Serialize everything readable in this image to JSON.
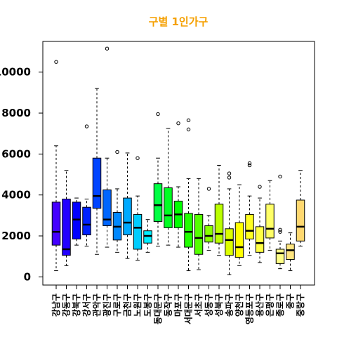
{
  "chart_data": {
    "type": "box",
    "title": "구별 1인가구",
    "xlabel": "",
    "ylabel": "",
    "ylim": [
      -400,
      11500
    ],
    "yticks": [
      0,
      2000,
      4000,
      6000,
      8000,
      10000
    ],
    "ytick_labels": [
      "0",
      "2000",
      "4000",
      "6000",
      "8000",
      "10000"
    ],
    "grid": false,
    "legend": "none",
    "categories": [
      "강남구",
      "강동구",
      "강북구",
      "강서구",
      "관악구",
      "광진구",
      "구로구",
      "금천구",
      "노원구",
      "도봉구",
      "동대문구",
      "동작구",
      "마포구",
      "서대문구",
      "서초구",
      "성동구",
      "성북구",
      "송파구",
      "양천구",
      "영등포구",
      "용산구",
      "은평구",
      "종로구",
      "중구",
      "중랑구"
    ],
    "colors": [
      "#4400ff",
      "#2200ff",
      "#0000ff",
      "#0022ff",
      "#0044ff",
      "#0066ff",
      "#0088ff",
      "#00aaff",
      "#00ccff",
      "#00eeff",
      "#00ff44",
      "#00ff22",
      "#00ff00",
      "#22ff00",
      "#55ff00",
      "#88ff00",
      "#bbff00",
      "#ddff00",
      "#ffff00",
      "#ffff22",
      "#ffff44",
      "#ffff66",
      "#ffff88",
      "#ffe680",
      "#ffd870"
    ],
    "boxes": [
      {
        "min": 300,
        "q1": 1550,
        "median": 2200,
        "q3": 3650,
        "max": 6400,
        "outliers": [
          10500
        ]
      },
      {
        "min": 550,
        "q1": 1050,
        "median": 1350,
        "q3": 3800,
        "max": 5200,
        "outliers": []
      },
      {
        "min": 1550,
        "q1": 1850,
        "median": 2800,
        "q3": 3650,
        "max": 3850,
        "outliers": []
      },
      {
        "min": 1500,
        "q1": 2050,
        "median": 2550,
        "q3": 3400,
        "max": 3800,
        "outliers": [
          7350
        ]
      },
      {
        "min": 1100,
        "q1": 3350,
        "median": 3950,
        "q3": 5800,
        "max": 9200,
        "outliers": []
      },
      {
        "min": 1450,
        "q1": 2500,
        "median": 2800,
        "q3": 4250,
        "max": 5800,
        "outliers": [
          11150
        ]
      },
      {
        "min": 1200,
        "q1": 1800,
        "median": 2450,
        "q3": 3150,
        "max": 4300,
        "outliers": [
          6100
        ]
      },
      {
        "min": 900,
        "q1": 2050,
        "median": 2650,
        "q3": 3850,
        "max": 6050,
        "outliers": []
      },
      {
        "min": 800,
        "q1": 1350,
        "median": 2400,
        "q3": 3050,
        "max": 3950,
        "outliers": [
          5800
        ]
      },
      {
        "min": 1200,
        "q1": 1650,
        "median": 2000,
        "q3": 2250,
        "max": 2800,
        "outliers": []
      },
      {
        "min": 1500,
        "q1": 2700,
        "median": 3500,
        "q3": 4550,
        "max": 5800,
        "outliers": [
          7950
        ]
      },
      {
        "min": 1550,
        "q1": 2400,
        "median": 3000,
        "q3": 4350,
        "max": 7250,
        "outliers": []
      },
      {
        "min": 1450,
        "q1": 2400,
        "median": 3050,
        "q3": 3700,
        "max": 4400,
        "outliers": [
          7500
        ]
      },
      {
        "min": 300,
        "q1": 1450,
        "median": 2200,
        "q3": 3100,
        "max": 4800,
        "outliers": [
          7650,
          7200
        ]
      },
      {
        "min": 350,
        "q1": 1100,
        "median": 1900,
        "q3": 3050,
        "max": 4800,
        "outliers": []
      },
      {
        "min": 1300,
        "q1": 1700,
        "median": 2000,
        "q3": 2500,
        "max": 3000,
        "outliers": [
          4300
        ]
      },
      {
        "min": 1050,
        "q1": 1650,
        "median": 2100,
        "q3": 3550,
        "max": 5450,
        "outliers": []
      },
      {
        "min": 100,
        "q1": 1050,
        "median": 1800,
        "q3": 2350,
        "max": 4300,
        "outliers": [
          5050,
          4850
        ]
      },
      {
        "min": 550,
        "q1": 950,
        "median": 1450,
        "q3": 2650,
        "max": 4500,
        "outliers": []
      },
      {
        "min": 1050,
        "q1": 1850,
        "median": 2250,
        "q3": 3050,
        "max": 3950,
        "outliers": [
          5550,
          5450
        ]
      },
      {
        "min": 700,
        "q1": 1200,
        "median": 1650,
        "q3": 2450,
        "max": 3850,
        "outliers": [
          4400
        ]
      },
      {
        "min": 1300,
        "q1": 1900,
        "median": 2350,
        "q3": 3550,
        "max": 4700,
        "outliers": []
      },
      {
        "min": 400,
        "q1": 650,
        "median": 1150,
        "q3": 1350,
        "max": 1750,
        "outliers": [
          4900,
          2300,
          2200
        ]
      },
      {
        "min": 300,
        "q1": 850,
        "median": 1300,
        "q3": 1600,
        "max": 2150,
        "outliers": []
      },
      {
        "min": 1500,
        "q1": 1750,
        "median": 2450,
        "q3": 3750,
        "max": 5200,
        "outliers": []
      }
    ]
  }
}
